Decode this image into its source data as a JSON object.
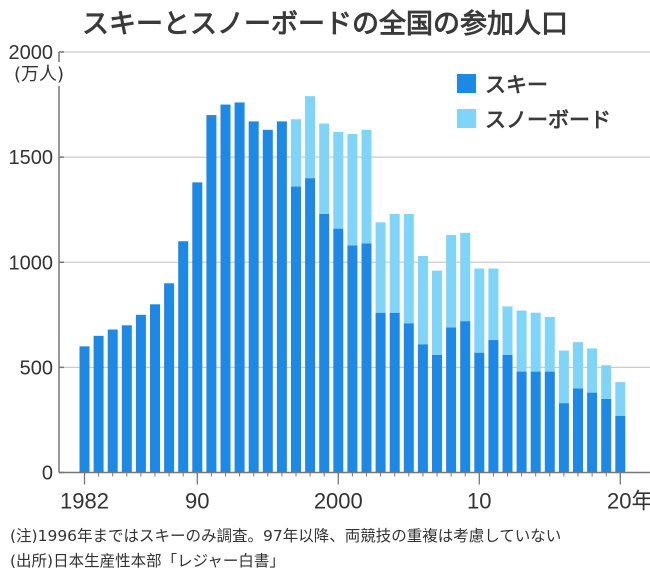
{
  "chart_data": {
    "type": "bar",
    "stacked": true,
    "title": "スキーとスノーボードの全国の参加人口",
    "ylabel": "(万人)",
    "xlabel": "",
    "ylim": [
      0,
      2000
    ],
    "yticks": [
      0,
      500,
      1000,
      1500,
      2000
    ],
    "ytick_labels": [
      "0",
      "500",
      "1000",
      "1500",
      "2000"
    ],
    "xticks": [
      {
        "year": 1982,
        "label": "1982"
      },
      {
        "year": 1990,
        "label": "90"
      },
      {
        "year": 2000,
        "label": "2000"
      },
      {
        "year": 2010,
        "label": "10"
      },
      {
        "year": 2020,
        "label": "20年"
      }
    ],
    "grid": true,
    "legend_position": "top-right",
    "categories": [
      1982,
      1983,
      1984,
      1985,
      1986,
      1987,
      1988,
      1989,
      1990,
      1991,
      1992,
      1993,
      1994,
      1995,
      1996,
      1997,
      1998,
      1999,
      2000,
      2001,
      2002,
      2003,
      2004,
      2005,
      2006,
      2007,
      2008,
      2009,
      2010,
      2011,
      2012,
      2013,
      2014,
      2015,
      2016,
      2017,
      2018,
      2019,
      2020
    ],
    "series": [
      {
        "name": "スキー",
        "color": "#1e88e5",
        "values": [
          600,
          650,
          680,
          700,
          750,
          800,
          900,
          1100,
          1380,
          1700,
          1750,
          1760,
          1670,
          1630,
          1670,
          1360,
          1400,
          1230,
          1160,
          1080,
          1090,
          760,
          760,
          710,
          610,
          560,
          690,
          720,
          570,
          630,
          560,
          480,
          480,
          480,
          330,
          400,
          380,
          350,
          270
        ]
      },
      {
        "name": "スノーボード",
        "color": "#7fd4f8",
        "values": [
          0,
          0,
          0,
          0,
          0,
          0,
          0,
          0,
          0,
          0,
          0,
          0,
          0,
          0,
          0,
          320,
          390,
          430,
          460,
          530,
          540,
          430,
          470,
          520,
          420,
          400,
          440,
          420,
          400,
          340,
          230,
          290,
          280,
          260,
          250,
          220,
          210,
          160,
          160
        ]
      }
    ]
  },
  "notes": {
    "note1": "(注)1996年まではスキーのみ調査。97年以降、両競技の重複は考慮していない",
    "source": "(出所)日本生産性本部「レジャー白書」"
  }
}
